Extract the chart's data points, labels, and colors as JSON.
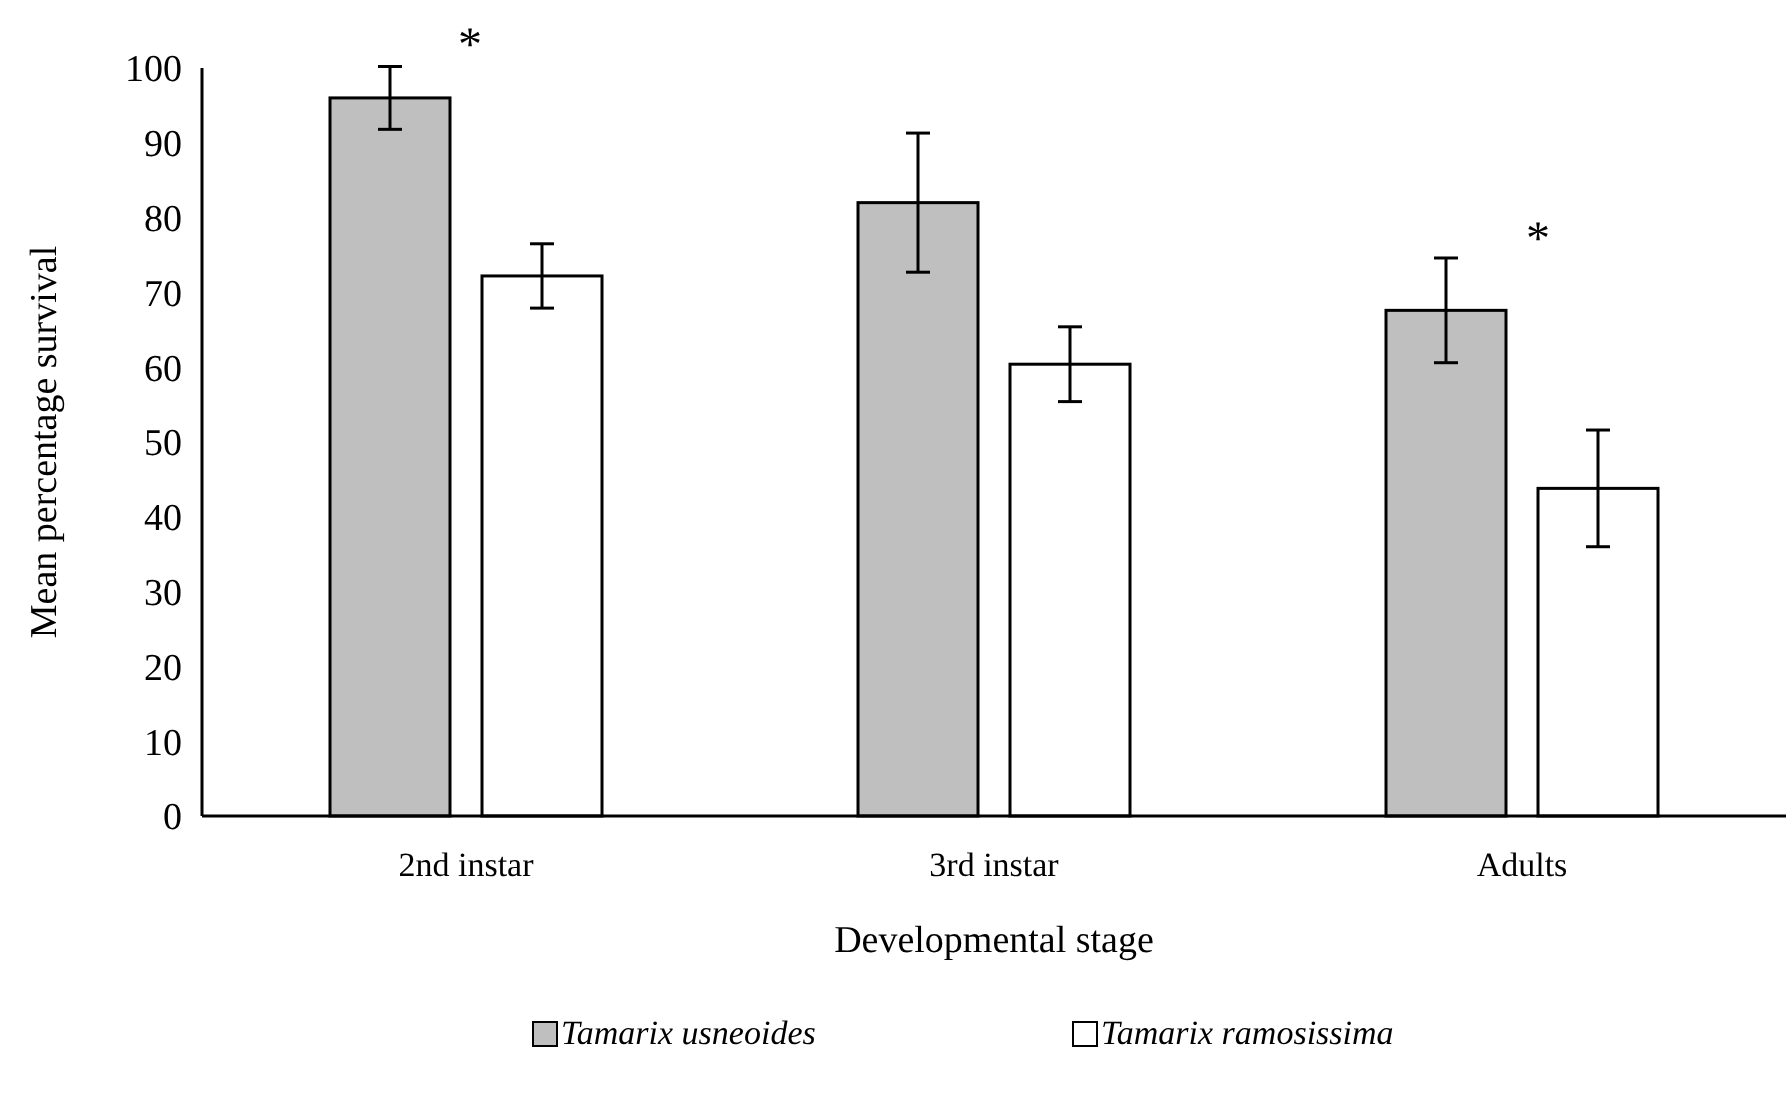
{
  "chart_data": {
    "type": "bar",
    "xlabel": "Developmental stage",
    "ylabel": "Mean percentage survival",
    "categories": [
      "2nd instar",
      "3rd instar",
      "Adults"
    ],
    "series": [
      {
        "name": "Tamarix usneoides",
        "color": "#bfbfbf",
        "values": [
          96,
          82,
          67.6
        ],
        "errors": [
          4.2,
          9.3,
          7
        ]
      },
      {
        "name": "Tamarix ramosissima",
        "color": "#ffffff",
        "values": [
          72.2,
          60.4,
          43.8
        ],
        "errors": [
          4.3,
          5,
          7.8
        ]
      }
    ],
    "ylim": [
      0,
      100
    ],
    "yticks": [
      0,
      10,
      20,
      30,
      40,
      50,
      60,
      70,
      80,
      90,
      100
    ],
    "grid": false,
    "legend": "bottom",
    "annotations": [
      "*",
      "*"
    ]
  }
}
